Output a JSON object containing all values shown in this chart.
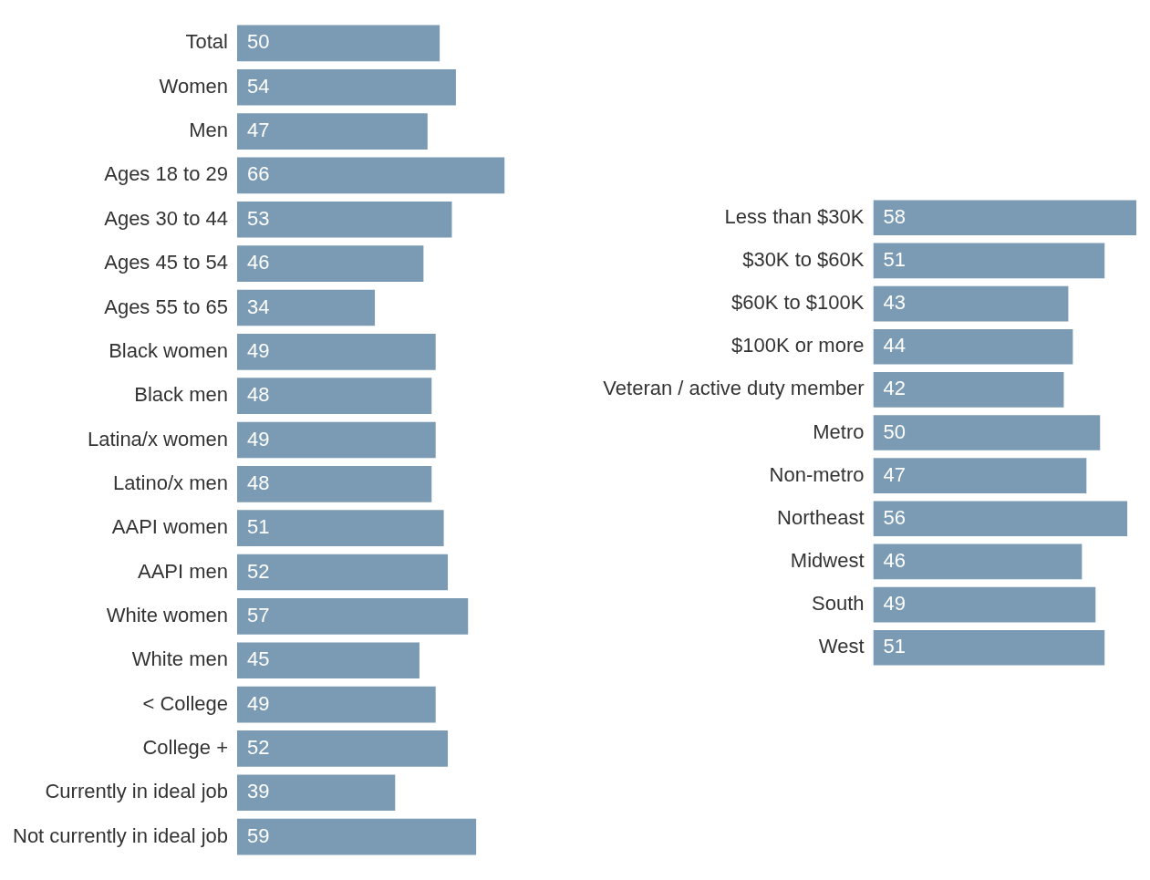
{
  "chart_data": [
    {
      "type": "bar",
      "orientation": "horizontal",
      "categories": [
        "Total",
        "Women",
        "Men",
        "Ages 18 to 29",
        "Ages 30 to 44",
        "Ages 45 to 54",
        "Ages 55 to 65",
        "Black women",
        "Black men",
        "Latina/x women",
        "Latino/x men",
        "AAPI women",
        "AAPI men",
        "White women",
        "White men",
        "< College",
        "College +",
        "Currently in ideal job",
        "Not currently in ideal job"
      ],
      "values": [
        50,
        54,
        47,
        66,
        53,
        46,
        34,
        49,
        48,
        49,
        48,
        51,
        52,
        57,
        45,
        49,
        52,
        39,
        59
      ],
      "color": "#7a9bb3",
      "data_labels": true,
      "grid": false,
      "legend": false,
      "tick_labels": "y"
    },
    {
      "type": "bar",
      "orientation": "horizontal",
      "categories": [
        "Less than $30K",
        "$30K to $60K",
        "$60K to $100K",
        "$100K or more",
        "Veteran / active duty member",
        "Metro",
        "Non-metro",
        "Northeast",
        "Midwest",
        "South",
        "West"
      ],
      "values": [
        58,
        51,
        43,
        44,
        42,
        50,
        47,
        56,
        46,
        49,
        51
      ],
      "color": "#7a9bb3",
      "data_labels": true,
      "grid": false,
      "legend": false,
      "tick_labels": "y"
    }
  ]
}
